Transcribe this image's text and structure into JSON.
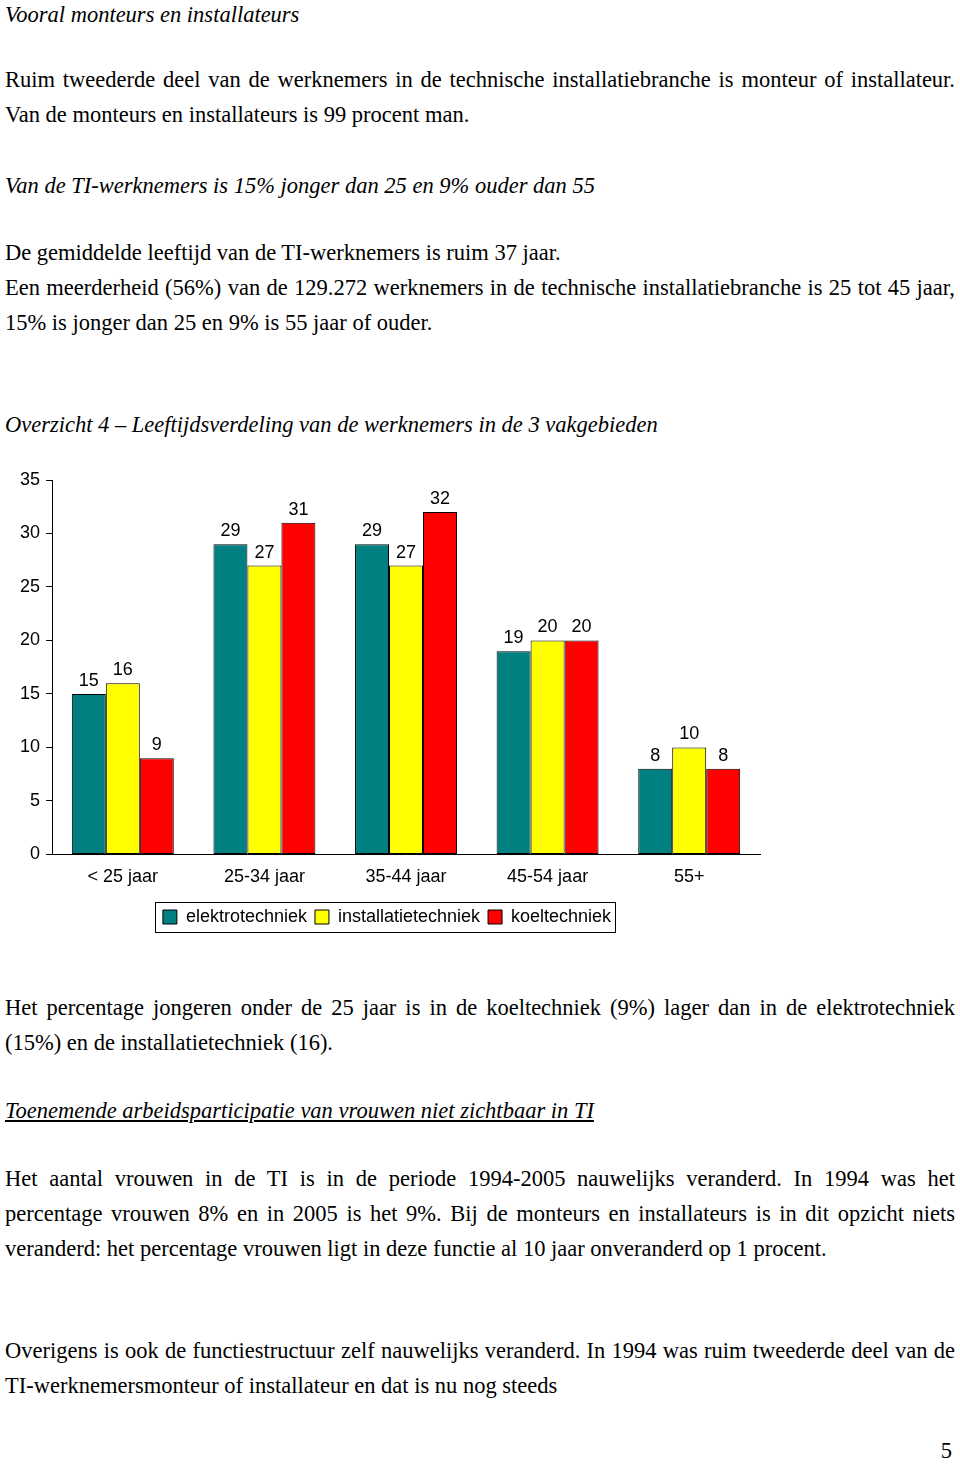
{
  "document": {
    "title": "Vooral monteurs en installateurs",
    "intro": "Ruim tweederde deel van de werknemers in de technische installatiebranche is monteur of installateur. Van de monteurs en installateurs is 99 procent man.",
    "subtitle": "Van de TI-werknemers is 15% jonger dan 25 en 9% ouder dan 55",
    "paragraph_age": [
      "De gemiddelde leeftijd van de TI-werknemers is ruim 37 jaar.",
      "Een meerderheid (56%) van de 129.272 werknemers in de technische installatiebranche is 25 tot 45 jaar, 15% is jonger dan 25 en 9% is 55 jaar of ouder."
    ],
    "caption": "Overzicht 4 – Leeftijdsverdeling van de werknemers in de 3 vakgebieden",
    "paragraph_youth": "Het percentage jongeren onder de 25 jaar is in de koeltechniek (9%) lager dan in de elektrotechniek (15%) en de installatietechniek (16).",
    "section_heading": "Toenemende arbeidsparticipatie van vrouwen niet zichtbaar in TI",
    "paragraph_women": "Het aantal vrouwen in de TI is in de periode 1994-2005 nauwelijks veranderd. In 1994 was het percentage vrouwen 8% en in 2005 is het 9%. Bij de monteurs en installateurs is in dit opzicht niets veranderd: het percentage vrouwen ligt in deze functie al 10 jaar onveranderd op 1 procent.",
    "paragraph_structure": "Overigens is ook de functiestructuur zelf nauwelijks veranderd. In 1994 was ruim tweederde deel van de TI-werknemersmonteur of installateur en dat is nu nog steeds",
    "page_number": 5
  },
  "chart_data": {
    "type": "bar",
    "categories": [
      "< 25 jaar",
      "25-34 jaar",
      "35-44 jaar",
      "45-54 jaar",
      "55+"
    ],
    "series": [
      {
        "name": "elektrotechniek",
        "color": "#008080",
        "values": [
          15,
          29,
          29,
          19,
          8
        ]
      },
      {
        "name": "installatietechniek",
        "color": "#ffff00",
        "values": [
          16,
          27,
          27,
          20,
          10
        ]
      },
      {
        "name": "koeltechniek",
        "color": "#ff0000",
        "values": [
          9,
          31,
          32,
          20,
          8
        ]
      }
    ],
    "ylim": [
      0,
      35
    ],
    "yticks": [
      0,
      5,
      10,
      15,
      20,
      25,
      30,
      35
    ],
    "grid": false,
    "legend": "bottom",
    "data_labels": true
  }
}
